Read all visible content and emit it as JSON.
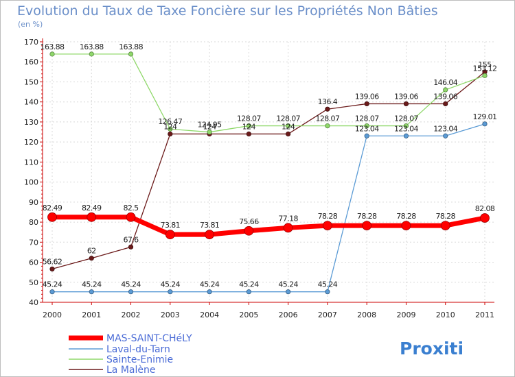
{
  "chart_data": {
    "type": "line",
    "title": "Evolution du Taux de Taxe Foncière sur les Propriétés Non Bâties",
    "subtitle": "(en %)",
    "xlabel": "",
    "ylabel": "",
    "ylim": [
      40,
      170
    ],
    "yticks": [
      40,
      50,
      60,
      70,
      80,
      90,
      100,
      110,
      120,
      130,
      140,
      150,
      160,
      170
    ],
    "categories": [
      "2000",
      "2001",
      "2002",
      "2003",
      "2004",
      "2005",
      "2006",
      "2007",
      "2008",
      "2009",
      "2010",
      "2011"
    ],
    "series": [
      {
        "name": "La Malène",
        "color": "#6b1a1a",
        "width": 1.3,
        "values": [
          56.62,
          62,
          67.6,
          124,
          124,
          124,
          124,
          136.4,
          139.06,
          139.06,
          139.06,
          155
        ],
        "labels": [
          "56.62",
          "62",
          "67.6",
          "124",
          "124",
          "124",
          "124",
          "136.4",
          "139.06",
          "139.06",
          "139.06",
          "155"
        ]
      },
      {
        "name": "Sainte-Enimie",
        "color": "#8fd86a",
        "width": 1.3,
        "values": [
          163.88,
          163.88,
          163.88,
          126.47,
          124.95,
          128.07,
          128.07,
          128.07,
          128.07,
          128.07,
          146.04,
          153.12
        ],
        "labels": [
          "163.88",
          "163.88",
          "163.88",
          "126.47",
          "124.95",
          "128.07",
          "128.07",
          "128.07",
          "128.07",
          "128.07",
          "146.04",
          "153.12"
        ]
      },
      {
        "name": "Laval-du-Tarn",
        "color": "#5b9bd5",
        "width": 1.3,
        "values": [
          45.24,
          45.24,
          45.24,
          45.24,
          45.24,
          45.24,
          45.24,
          45.24,
          123.04,
          123.04,
          123.04,
          129.01
        ],
        "labels": [
          "45.24",
          "45.24",
          "45.24",
          "45.24",
          "45.24",
          "45.24",
          "45.24",
          "45.24",
          "123.04",
          "123.04",
          "123.04",
          "129.01"
        ]
      },
      {
        "name": "MAS-SAINT-CHéLY",
        "color": "#ff0000",
        "width": 7,
        "values": [
          82.49,
          82.49,
          82.5,
          73.81,
          73.81,
          75.66,
          77.18,
          78.28,
          78.28,
          78.28,
          78.28,
          82.08
        ],
        "labels": [
          "82.49",
          "82.49",
          "82.5",
          "73.81",
          "73.81",
          "75.66",
          "77.18",
          "78.28",
          "78.28",
          "78.28",
          "78.28",
          "82.08"
        ]
      }
    ],
    "legend": {
      "placement": "bottom-left",
      "entries": [
        "MAS-SAINT-CHéLY",
        "Laval-du-Tarn",
        "Sainte-Enimie",
        "La Malène"
      ]
    }
  },
  "logo": {
    "text": "Proxiti"
  }
}
